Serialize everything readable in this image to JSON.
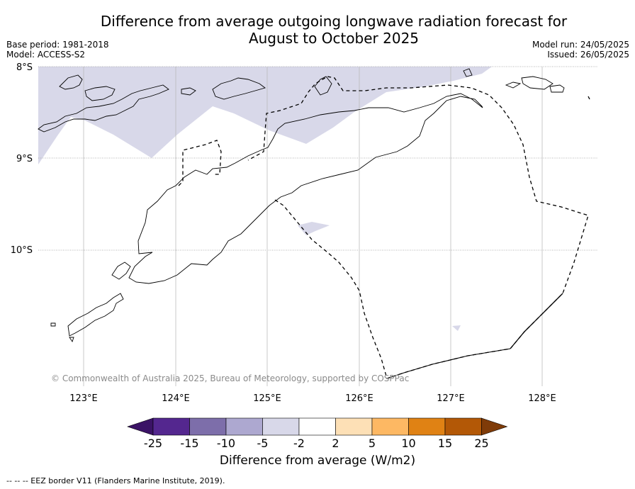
{
  "title_line1": "Difference from average outgoing longwave radiation forecast for",
  "title_line2": "August to October 2025",
  "meta_left": {
    "base_period": "Base period: 1981-2018",
    "model": "Model: ACCESS-S2"
  },
  "meta_right": {
    "model_run": "Model run: 24/05/2025",
    "issued": "Issued: 26/05/2025"
  },
  "map": {
    "lat_labels": [
      "8°S",
      "9°S",
      "10°S"
    ],
    "lon_labels": [
      "123°E",
      "124°E",
      "125°E",
      "126°E",
      "127°E",
      "128°E"
    ],
    "copyright": "© Commonwealth of Australia 2025, Bureau of Meteorology, supported by COSPPac",
    "anomaly_fill_color": "#d8d8e9"
  },
  "colorbar": {
    "label": "Difference from average (W/m2)",
    "ticks": [
      "-25",
      "-15",
      "-10",
      "-5",
      "-2",
      "2",
      "5",
      "10",
      "15",
      "25"
    ],
    "colors": [
      "#3b1366",
      "#54278f",
      "#7d6eaa",
      "#ada8d0",
      "#d8d8e9",
      "#ffffff",
      "#fde0b6",
      "#fdb863",
      "#e08214",
      "#b35806",
      "#7f3b08"
    ]
  },
  "footnote": "--  --  -- EEZ border V11 (Flanders Marine Institute, 2019)."
}
